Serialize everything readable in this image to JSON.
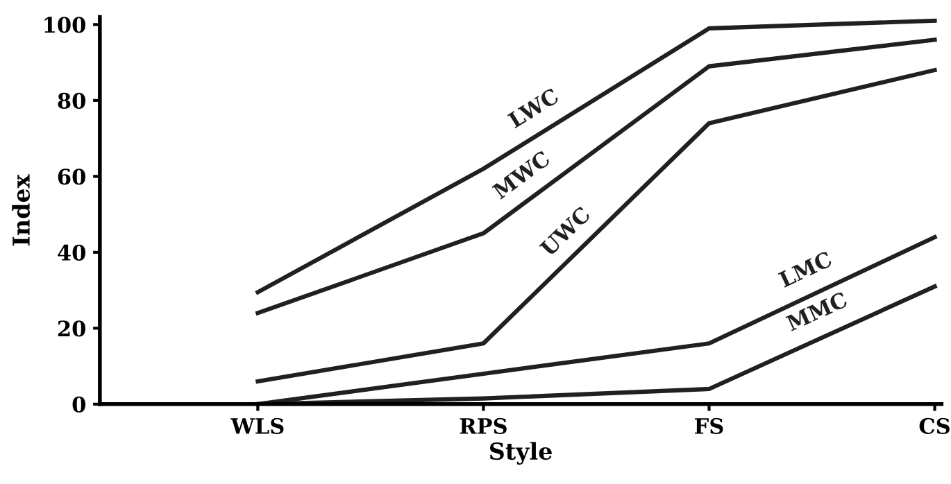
{
  "chart_data": {
    "type": "line",
    "xlabel": "Style",
    "ylabel": "Index",
    "categories": [
      "WLS",
      "RPS",
      "FS",
      "CS"
    ],
    "series": [
      {
        "name": "LWC",
        "color": "#231f20",
        "values": [
          29.5,
          62,
          99,
          101
        ]
      },
      {
        "name": "MWC",
        "color": "#231f20",
        "values": [
          24,
          45,
          89,
          96
        ]
      },
      {
        "name": "UWC",
        "color": "#231f20",
        "values": [
          6,
          16,
          74,
          88
        ]
      },
      {
        "name": "LMC",
        "color": "#231f20",
        "values": [
          0,
          8,
          16,
          44
        ]
      },
      {
        "name": "MMC",
        "color": "#231f20",
        "values": [
          0,
          1.5,
          4,
          31
        ]
      }
    ],
    "ylim": [
      0,
      102
    ],
    "yticks": [
      0,
      20,
      40,
      60,
      80,
      100
    ],
    "grid": false,
    "legend": false,
    "marker": "none",
    "line_style": "solid"
  }
}
